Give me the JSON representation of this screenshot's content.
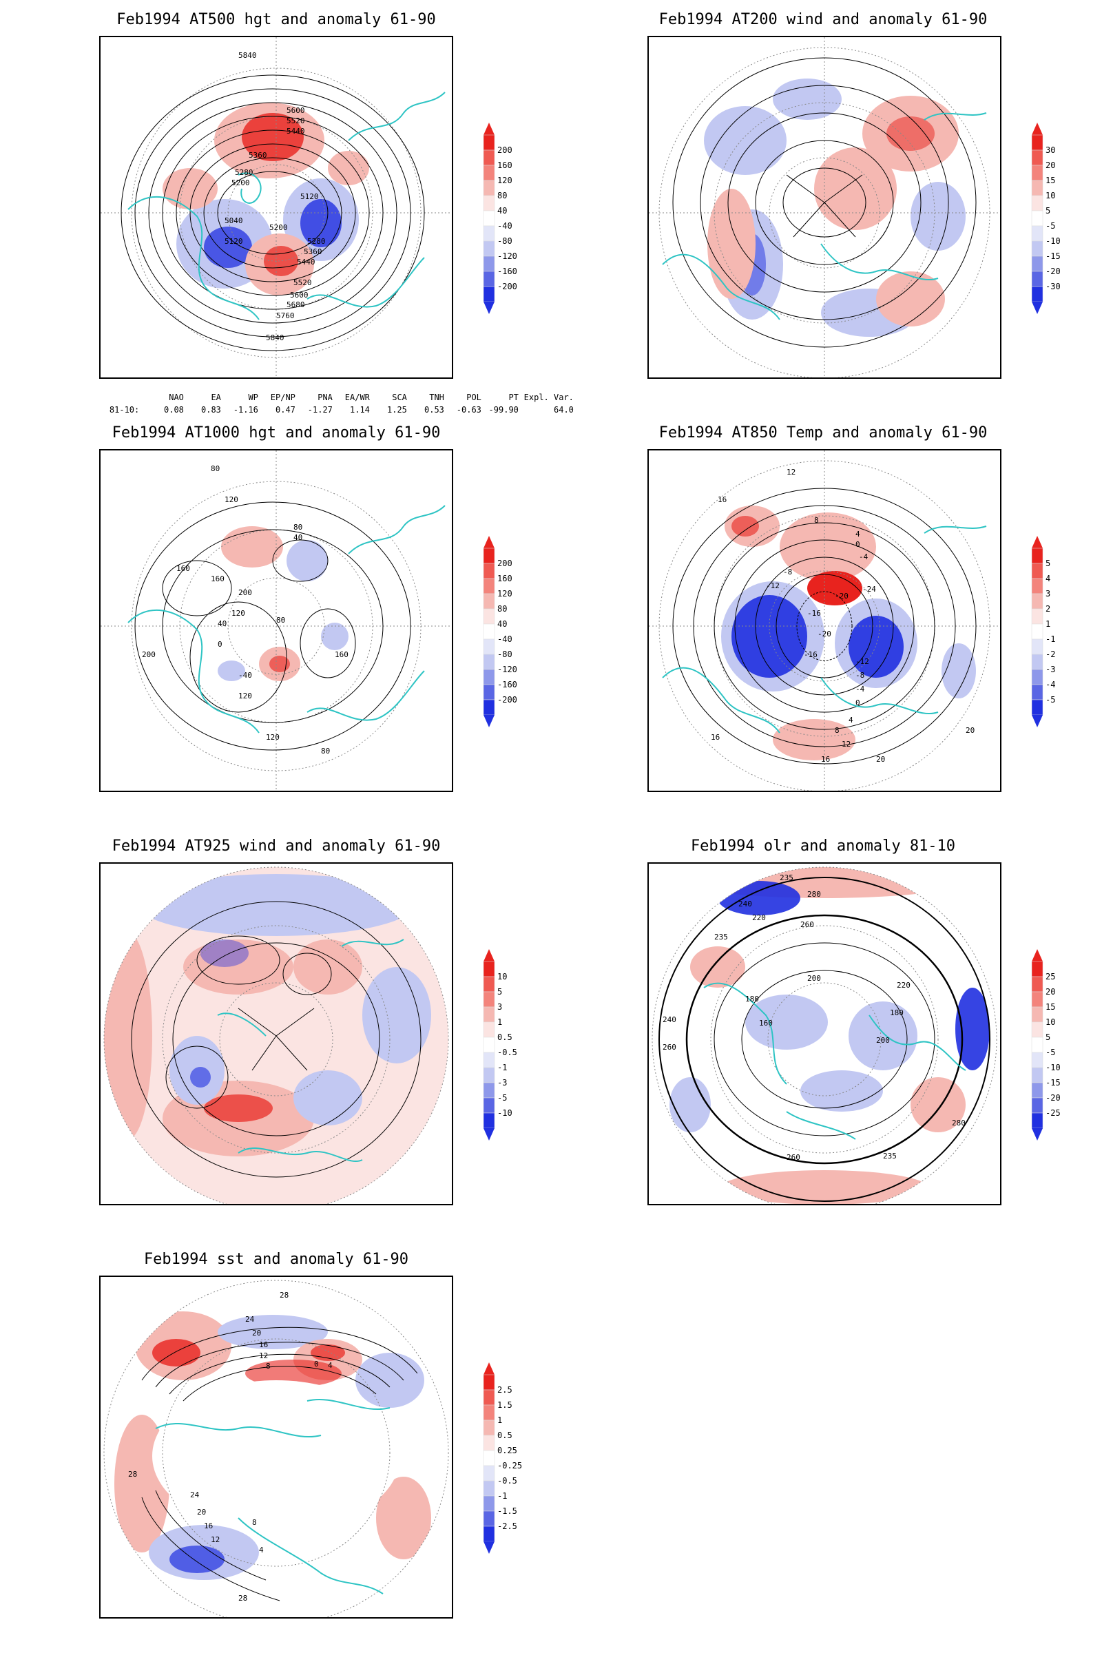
{
  "panels": [
    {
      "id": "at500",
      "title": "Feb1994 AT500 hgt and anomaly 61-90",
      "contour_labels": [
        "5840",
        "5600",
        "5520",
        "5440",
        "5360",
        "5280",
        "5200",
        "5120",
        "5040",
        "5120",
        "5200",
        "5280",
        "5360",
        "5440",
        "5520",
        "5600",
        "5680",
        "5760",
        "5840"
      ],
      "colorbar": [
        "200",
        "160",
        "120",
        "80",
        "40",
        "-40",
        "-80",
        "-120",
        "-160",
        "-200"
      ]
    },
    {
      "id": "at200",
      "title": "Feb1994 AT200 wind and anomaly 61-90",
      "contour_labels": [],
      "colorbar": [
        "30",
        "20",
        "15",
        "10",
        "5",
        "-5",
        "-10",
        "-15",
        "-20",
        "-30"
      ]
    },
    {
      "id": "at1000",
      "title": "Feb1994 AT1000 hgt and anomaly 61-90",
      "contour_labels": [
        "80",
        "120",
        "80",
        "40",
        "160",
        "200",
        "160",
        "120",
        "80",
        "40",
        "0",
        "-40",
        "120",
        "160",
        "200",
        "120",
        "80"
      ],
      "colorbar": [
        "200",
        "160",
        "120",
        "80",
        "40",
        "-40",
        "-80",
        "-120",
        "-160",
        "-200"
      ]
    },
    {
      "id": "at850",
      "title": "Feb1994 AT850 Temp and anomaly 61-90",
      "contour_labels": [
        "16",
        "12",
        "8",
        "4",
        "0",
        "-4",
        "-8",
        "-12",
        "-16",
        "-20",
        "-24",
        "-20",
        "-16",
        "-12",
        "-8",
        "-4",
        "0",
        "4",
        "8",
        "12",
        "16",
        "20",
        "20",
        "16"
      ],
      "colorbar": [
        "5",
        "4",
        "3",
        "2",
        "1",
        "-1",
        "-2",
        "-3",
        "-4",
        "-5"
      ]
    },
    {
      "id": "at925",
      "title": "Feb1994 AT925 wind and anomaly 61-90",
      "contour_labels": [],
      "colorbar": [
        "10",
        "5",
        "3",
        "1",
        "0.5",
        "-0.5",
        "-1",
        "-3",
        "-5",
        "-10"
      ]
    },
    {
      "id": "olr",
      "title": "Feb1994 olr and anomaly 81-10",
      "contour_labels": [
        "235",
        "280",
        "260",
        "240",
        "220",
        "235",
        "200",
        "180",
        "160",
        "180",
        "200",
        "220",
        "240",
        "260",
        "280",
        "235",
        "260"
      ],
      "colorbar": [
        "25",
        "20",
        "15",
        "10",
        "5",
        "-5",
        "-10",
        "-15",
        "-20",
        "-25"
      ]
    },
    {
      "id": "sst",
      "title": "Feb1994 sst and anomaly 61-90",
      "contour_labels": [
        "28",
        "24",
        "20",
        "16",
        "12",
        "8",
        "4",
        "0",
        "28",
        "24",
        "20",
        "16",
        "12",
        "8",
        "4",
        "28"
      ],
      "colorbar": [
        "2.5",
        "1.5",
        "1",
        "0.5",
        "0.25",
        "-0.25",
        "-0.5",
        "-1",
        "-1.5",
        "-2.5"
      ]
    }
  ],
  "indices": {
    "header": [
      "NAO",
      "EA",
      "WP",
      "EP/NP",
      "PNA",
      "EA/WR",
      "SCA",
      "TNH",
      "POL",
      "PT",
      "Expl. Var."
    ],
    "row_label": "81-10:",
    "values": [
      "0.08",
      "0.83",
      "-1.16",
      "0.47",
      "-1.27",
      "1.14",
      "1.25",
      "0.53",
      "-0.63",
      "-99.90",
      "64.0"
    ]
  },
  "colors": {
    "coast": "#2ec4c4",
    "red_strong": "#e8231e",
    "red_light": "#f5b8b2",
    "blue_strong": "#2030e0",
    "blue_light": "#c2c8f2",
    "contour": "#000000"
  }
}
